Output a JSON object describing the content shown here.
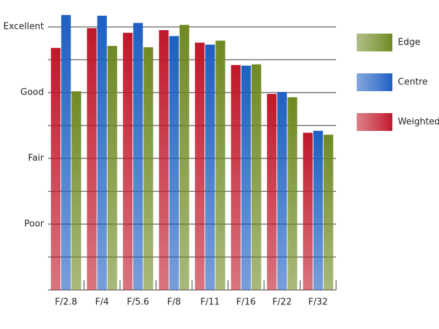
{
  "chart_data": {
    "type": "bar",
    "categories": [
      "F/2.8",
      "F/4",
      "F/5.6",
      "F/8",
      "F/11",
      "F/16",
      "F/22",
      "F/32"
    ],
    "series": [
      {
        "name": "Weighted",
        "color": "#c0182a",
        "values": [
          3.68,
          3.98,
          3.91,
          3.95,
          3.76,
          3.42,
          2.98,
          2.39
        ]
      },
      {
        "name": "Centre",
        "color": "#1f5fc4",
        "values": [
          4.18,
          4.17,
          4.06,
          3.86,
          3.73,
          3.41,
          3.01,
          2.42
        ]
      },
      {
        "name": "Edge",
        "color": "#6f8a22",
        "values": [
          3.02,
          3.71,
          3.69,
          4.03,
          3.79,
          3.43,
          2.93,
          2.36
        ]
      }
    ],
    "ylim": [
      0,
      4.2
    ],
    "yticks": [
      {
        "value": 1,
        "label": "Poor"
      },
      {
        "value": 2,
        "label": "Fair"
      },
      {
        "value": 3,
        "label": "Good"
      },
      {
        "value": 4,
        "label": "Excellent"
      }
    ],
    "minor_yticks": [
      0.5,
      1.5,
      2.5,
      3.5
    ],
    "grid": true
  }
}
